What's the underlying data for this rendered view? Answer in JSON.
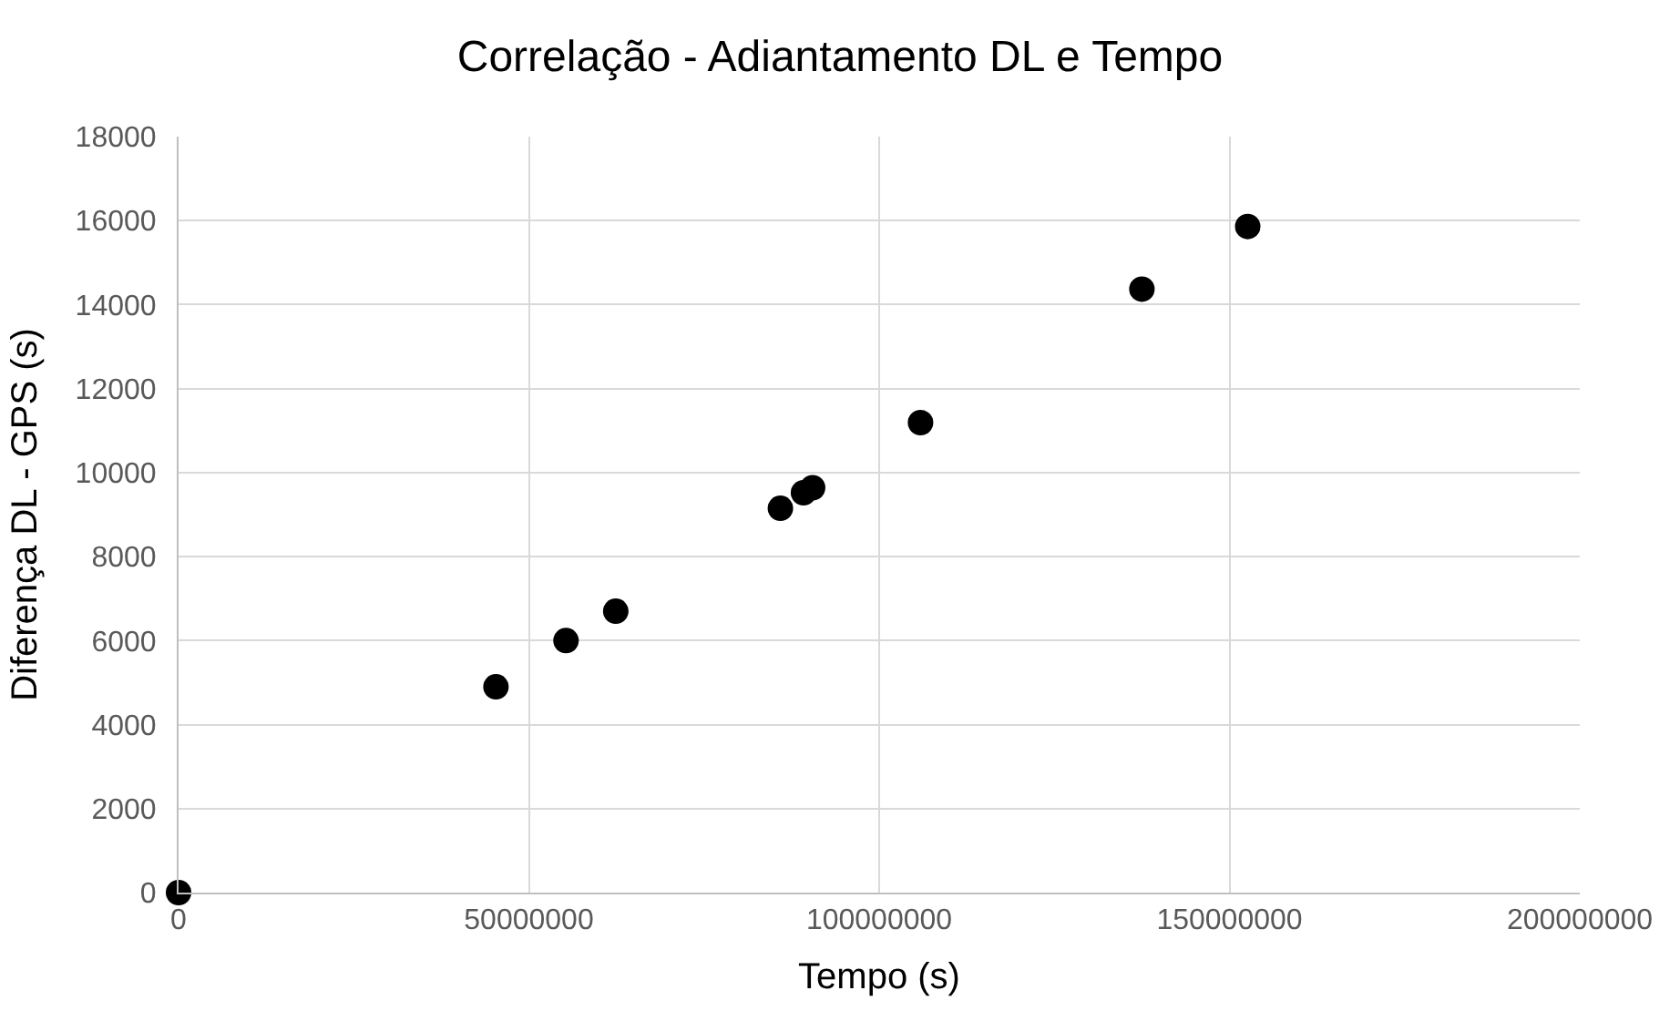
{
  "chart_data": {
    "type": "scatter",
    "title": "Correlação - Adiantamento DL e Tempo",
    "xlabel": "Tempo (s)",
    "ylabel": "Diferença DL - GPS (s)",
    "x": [
      0,
      45300000,
      55300000,
      62400000,
      85900000,
      89200000,
      90500000,
      105900000,
      137500000,
      152600000
    ],
    "series": [
      {
        "color": "#000000",
        "values": [
          0,
          4900,
          6000,
          6700,
          9150,
          9520,
          9640,
          11190,
          14370,
          15860
        ]
      }
    ],
    "xlim": [
      0,
      200000000
    ],
    "xticks": [
      0,
      50000000,
      100000000,
      150000000,
      200000000
    ],
    "ylim": [
      0,
      18000
    ],
    "yticks": [
      0,
      2000,
      4000,
      6000,
      8000,
      10000,
      12000,
      14000,
      16000,
      18000
    ],
    "grid": true,
    "marker": "circle"
  }
}
